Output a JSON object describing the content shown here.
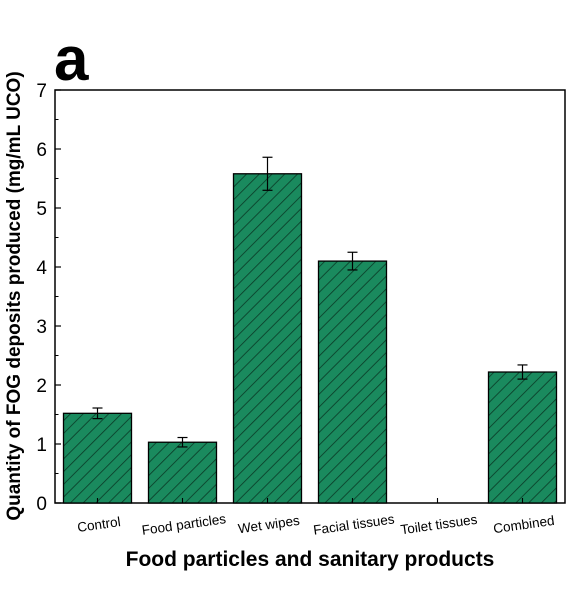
{
  "panel_label": "a",
  "colors": {
    "bar_fill": "#1a8a5e",
    "hatch": "#0a3a26",
    "edge": "#000000"
  },
  "chart_data": {
    "type": "bar",
    "categories": [
      "Control",
      "Food particles",
      "Wet wipes",
      "Facial tissues",
      "Toilet tissues",
      "Combined"
    ],
    "values": [
      1.52,
      1.03,
      5.58,
      4.1,
      0,
      2.22
    ],
    "errors": [
      0.09,
      0.08,
      0.28,
      0.15,
      0,
      0.12
    ],
    "xlabel": "Food particles and sanitary products",
    "ylabel": "Quantity of FOG deposits produced (mg/mL UCO)",
    "ylim": [
      0,
      7
    ],
    "yticks": [
      "0",
      "1",
      "2",
      "3",
      "4",
      "5",
      "6",
      "7"
    ],
    "grid": false,
    "bar_pattern": "diagonal-hatch"
  }
}
